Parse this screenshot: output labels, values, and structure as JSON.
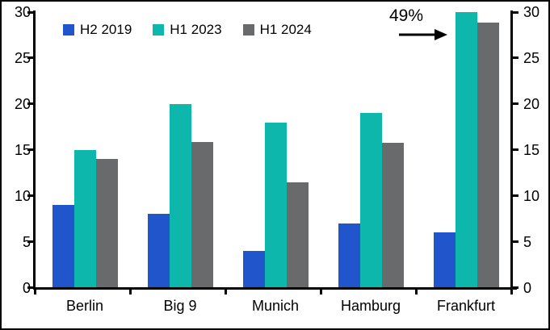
{
  "chart_data": {
    "type": "bar",
    "title": "",
    "xlabel": "",
    "ylabel": "",
    "categories": [
      "Berlin",
      "Big 9",
      "Munich",
      "Hamburg",
      "Frankfurt"
    ],
    "series": [
      {
        "name": "H2 2019",
        "color": "#2155cb",
        "values": [
          9,
          8,
          4,
          7,
          6
        ]
      },
      {
        "name": "H1 2023",
        "color": "#0db7ab",
        "values": [
          15,
          20,
          18,
          19,
          30
        ]
      },
      {
        "name": "H1 2024",
        "color": "#696a6c",
        "values": [
          14,
          15.9,
          11.5,
          15.8,
          28.9
        ]
      }
    ],
    "ylim": [
      0,
      30
    ],
    "yticks": [
      0,
      5,
      10,
      15,
      20,
      25,
      30
    ],
    "grid": false,
    "legend_position": "top-left",
    "dual_axis": true,
    "annotation": {
      "text": "49%",
      "arrow_direction": "right",
      "target_category": "Frankfurt",
      "target_series": "H1 2023"
    }
  },
  "colors": {
    "axis": "#000000",
    "background": "#ffffff",
    "text": "#000000"
  }
}
